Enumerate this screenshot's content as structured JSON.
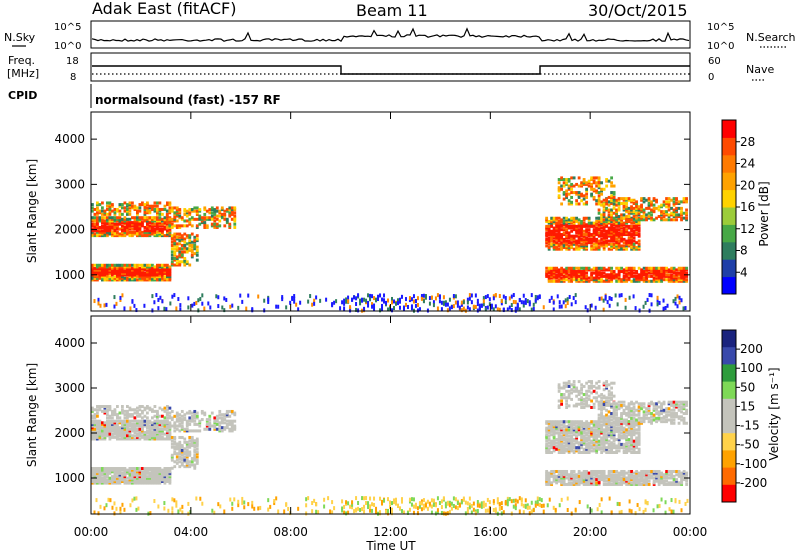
{
  "header": {
    "title": "Adak East (fitACF)",
    "beam": "Beam 11",
    "date": "30/Oct/2015"
  },
  "top_panel": {
    "left_label": "N.Sky",
    "right_label": "N.Search",
    "left_ticks": [
      "10^5",
      "10^0"
    ],
    "right_ticks": [
      "10^5",
      "10^0"
    ]
  },
  "freq_panel": {
    "left_label_1": "Freq.",
    "left_label_2": "[MHz]",
    "right_label": "Nave",
    "left_ticks": [
      "18",
      "8"
    ],
    "right_ticks": [
      "60",
      "0"
    ]
  },
  "cpid": {
    "label": "CPID",
    "text": "normalsound (fast) -157 RF"
  },
  "colors": {
    "power_high": "#ff0000",
    "power_mid": "#ff8c00",
    "power_low": "#1a1aff",
    "velocity_neutral": "#c4c4bc",
    "velocity_pos": "#2e9c3c",
    "velocity_neg": "#ff8c00"
  },
  "chart_data": [
    {
      "type": "heatmap",
      "name": "Power",
      "ylabel": "Slant Range [km]",
      "y_ticks": [
        "1000",
        "2000",
        "3000",
        "4000"
      ],
      "ylim": [
        200,
        4600
      ],
      "x_ticks": [
        "00:00",
        "04:00",
        "08:00",
        "12:00",
        "16:00",
        "20:00",
        "00:00"
      ],
      "xlim_hours": [
        0,
        24
      ],
      "colorbar": {
        "label": "Power [dB]",
        "ticks": [
          "4",
          "8",
          "12",
          "16",
          "20",
          "24",
          "28"
        ],
        "colors": [
          "#0000ff",
          "#1f3fa8",
          "#2e7d5e",
          "#47a846",
          "#9ccc3a",
          "#ffd200",
          "#ffa200",
          "#ff7a00",
          "#ff4a00",
          "#ff0000"
        ]
      }
    },
    {
      "type": "heatmap",
      "name": "Velocity",
      "ylabel": "Slant Range [km]",
      "y_ticks": [
        "1000",
        "2000",
        "3000",
        "4000"
      ],
      "ylim": [
        200,
        4600
      ],
      "x_ticks": [
        "00:00",
        "04:00",
        "08:00",
        "12:00",
        "16:00",
        "20:00",
        "00:00"
      ],
      "xlabel": "Time UT",
      "colorbar": {
        "label": "Velocity [m s⁻¹]",
        "ticks": [
          "200",
          "100",
          "50",
          "15",
          "-15",
          "-50",
          "-100",
          "-200"
        ],
        "colors": [
          "#1a237e",
          "#3949ab",
          "#2e9c3c",
          "#7ed957",
          "#c4c4bc",
          "#c4c4bc",
          "#ffd24a",
          "#ffa200",
          "#ff6a00",
          "#ff0000"
        ]
      }
    }
  ]
}
